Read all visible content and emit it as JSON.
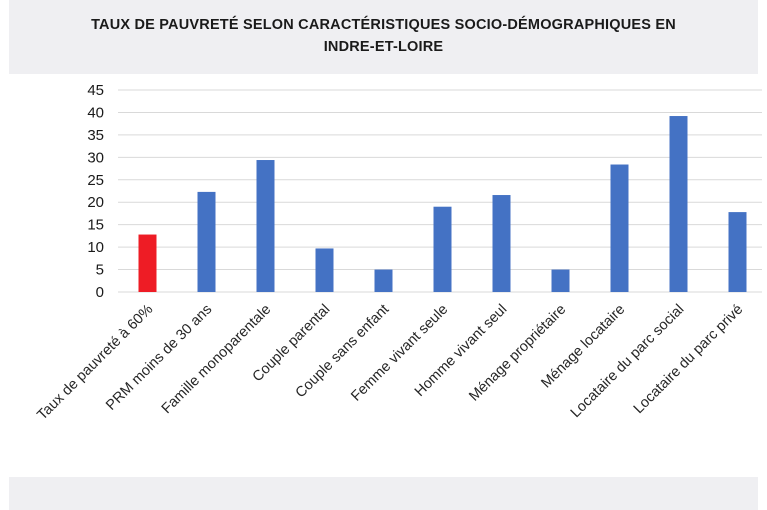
{
  "chart_data": {
    "type": "bar",
    "title_lines": [
      "TAUX DE PAUVRETÉ SELON CARACTÉRISTIQUES SOCIO-DÉMOGRAPHIQUES EN",
      "INDRE-ET-LOIRE"
    ],
    "categories": [
      "Taux de pauvreté à 60%",
      "PRM moins de 30 ans",
      "Famille monoparentale",
      "Couple parental",
      "Couple sans enfant",
      "Femme vivant seule",
      "Homme vivant seul",
      "Ménage propriétaire",
      "Ménage locataire",
      "Locataire du parc social",
      "Locataire du parc privé"
    ],
    "values": [
      12.8,
      22.3,
      29.4,
      9.7,
      5.0,
      19.0,
      21.6,
      5.0,
      28.4,
      39.2,
      17.8
    ],
    "ylim": [
      0,
      45
    ],
    "yticks": [
      0,
      5,
      10,
      15,
      20,
      25,
      30,
      35,
      40,
      45
    ],
    "grid": true,
    "colors": {
      "highlight": "#ee1c25",
      "default": "#4472c4"
    },
    "highlight_index": 0
  }
}
